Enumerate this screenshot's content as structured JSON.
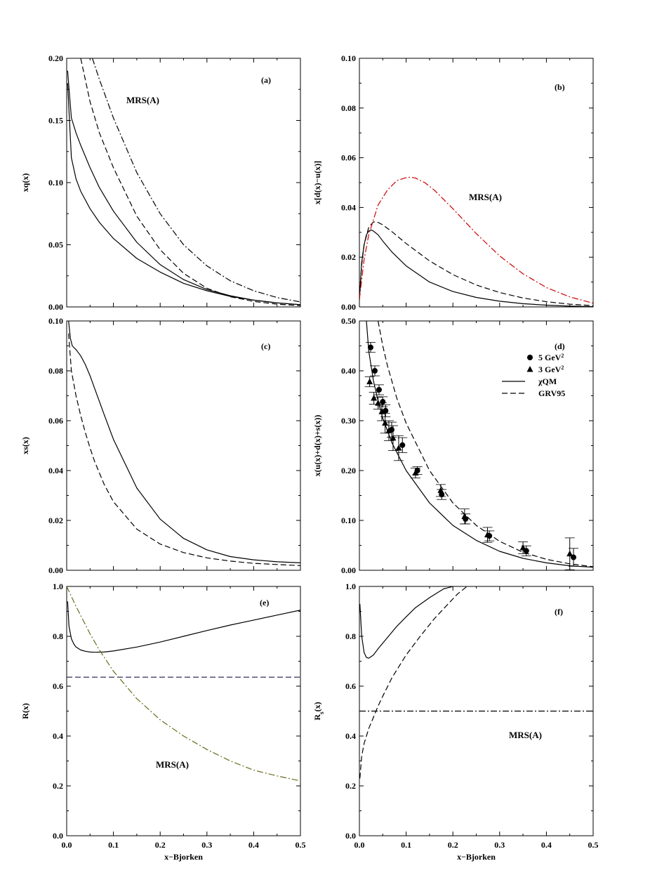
{
  "figure": {
    "xlabel": "x−Bjorken"
  },
  "chart_data": [
    {
      "id": "a",
      "type": "line",
      "panel_label": "(a)",
      "ylabel": "xq(x)",
      "annotation": "MRS(A)",
      "xlim": [
        0,
        0.5
      ],
      "ylim": [
        0,
        0.2
      ],
      "xticks": [
        "0.0",
        "0.1",
        "0.2",
        "0.3",
        "0.4",
        "0.5"
      ],
      "yticks": [
        "0.00",
        "0.05",
        "0.10",
        "0.15",
        "0.20"
      ],
      "ytick_values": [
        0,
        0.05,
        0.1,
        0.15,
        0.2
      ],
      "series": [
        {
          "style": "solid",
          "color": "#000000",
          "x": [
            0.002,
            0.01,
            0.02,
            0.03,
            0.05,
            0.07,
            0.1,
            0.15,
            0.2,
            0.25,
            0.3,
            0.35,
            0.4,
            0.45,
            0.5
          ],
          "y": [
            0.18,
            0.12,
            0.103,
            0.093,
            0.079,
            0.068,
            0.055,
            0.039,
            0.028,
            0.019,
            0.013,
            0.0085,
            0.0055,
            0.0033,
            0.0018
          ]
        },
        {
          "style": "solid",
          "color": "#000000",
          "x": [
            0.002,
            0.01,
            0.02,
            0.03,
            0.05,
            0.07,
            0.1,
            0.15,
            0.2,
            0.25,
            0.3,
            0.35,
            0.4,
            0.45,
            0.5
          ],
          "y": [
            0.19,
            0.152,
            0.14,
            0.13,
            0.112,
            0.096,
            0.077,
            0.052,
            0.034,
            0.022,
            0.014,
            0.009,
            0.0055,
            0.0032,
            0.0018
          ]
        },
        {
          "style": "dashed",
          "color": "#000000",
          "x": [
            0.03,
            0.05,
            0.07,
            0.1,
            0.15,
            0.2,
            0.25,
            0.3,
            0.35,
            0.4,
            0.45,
            0.5
          ],
          "y": [
            0.2,
            0.165,
            0.14,
            0.112,
            0.073,
            0.046,
            0.027,
            0.015,
            0.0082,
            0.0044,
            0.0022,
            0.001
          ]
        },
        {
          "style": "dashdot",
          "color": "#000000",
          "x": [
            0.055,
            0.07,
            0.1,
            0.15,
            0.2,
            0.25,
            0.3,
            0.35,
            0.4,
            0.45,
            0.5
          ],
          "y": [
            0.2,
            0.183,
            0.152,
            0.108,
            0.075,
            0.05,
            0.033,
            0.021,
            0.013,
            0.0075,
            0.004
          ]
        }
      ]
    },
    {
      "id": "b",
      "type": "line",
      "panel_label": "(b)",
      "ylabel": "x[d(x)−u(x)]",
      "annotation": "MRS(A)",
      "xlim": [
        0,
        0.5
      ],
      "ylim": [
        0,
        0.1
      ],
      "xticks": [
        "0.0",
        "0.1",
        "0.2",
        "0.3",
        "0.4",
        "0.5"
      ],
      "yticks": [
        "0.00",
        "0.02",
        "0.04",
        "0.06",
        "0.08",
        "0.10"
      ],
      "ytick_values": [
        0,
        0.02,
        0.04,
        0.06,
        0.08,
        0.1
      ],
      "series": [
        {
          "style": "solid",
          "color": "#000000",
          "x": [
            0,
            0.005,
            0.01,
            0.015,
            0.02,
            0.025,
            0.03,
            0.04,
            0.05,
            0.07,
            0.1,
            0.15,
            0.2,
            0.25,
            0.3,
            0.35,
            0.4,
            0.45,
            0.5
          ],
          "y": [
            0.003,
            0.018,
            0.025,
            0.029,
            0.0305,
            0.031,
            0.0305,
            0.029,
            0.0265,
            0.022,
            0.0165,
            0.01,
            0.0062,
            0.0038,
            0.0023,
            0.0013,
            0.0007,
            0.0003,
            0.0001
          ]
        },
        {
          "style": "dashed",
          "color": "#000000",
          "x": [
            0,
            0.005,
            0.01,
            0.02,
            0.03,
            0.04,
            0.05,
            0.07,
            0.1,
            0.15,
            0.2,
            0.25,
            0.3,
            0.35,
            0.4,
            0.45,
            0.5
          ],
          "y": [
            0.003,
            0.017,
            0.025,
            0.032,
            0.0342,
            0.034,
            0.033,
            0.0302,
            0.0255,
            0.0185,
            0.013,
            0.0088,
            0.0058,
            0.0036,
            0.0021,
            0.0011,
            0.0005
          ]
        },
        {
          "style": "dashdot",
          "color": "#cc0000",
          "x": [
            0,
            0.01,
            0.02,
            0.04,
            0.06,
            0.08,
            0.1,
            0.11,
            0.12,
            0.14,
            0.16,
            0.2,
            0.25,
            0.3,
            0.35,
            0.4,
            0.45,
            0.5
          ],
          "y": [
            0.003,
            0.019,
            0.029,
            0.041,
            0.047,
            0.0508,
            0.052,
            0.0522,
            0.0518,
            0.05,
            0.047,
            0.0395,
            0.0295,
            0.0205,
            0.0133,
            0.0078,
            0.004,
            0.0015
          ]
        }
      ]
    },
    {
      "id": "c",
      "type": "line",
      "panel_label": "(c)",
      "ylabel": "xs(x)",
      "xlim": [
        0,
        0.5
      ],
      "ylim": [
        0,
        0.1
      ],
      "xticks": [
        "0.0",
        "0.1",
        "0.2",
        "0.3",
        "0.4",
        "0.5"
      ],
      "yticks": [
        "0.00",
        "0.02",
        "0.04",
        "0.06",
        "0.08",
        "0.10"
      ],
      "ytick_values": [
        0,
        0.02,
        0.04,
        0.06,
        0.08,
        0.1
      ],
      "series": [
        {
          "style": "solid",
          "color": "#000000",
          "x": [
            0.004,
            0.008,
            0.012,
            0.02,
            0.03,
            0.04,
            0.05,
            0.06,
            0.08,
            0.1,
            0.15,
            0.2,
            0.25,
            0.3,
            0.35,
            0.4,
            0.45,
            0.5
          ],
          "y": [
            0.1,
            0.093,
            0.09,
            0.0885,
            0.086,
            0.0825,
            0.078,
            0.0728,
            0.0625,
            0.0525,
            0.033,
            0.0205,
            0.0128,
            0.0082,
            0.0055,
            0.0042,
            0.0034,
            0.003
          ]
        },
        {
          "style": "dashed",
          "color": "#000000",
          "x": [
            0.004,
            0.01,
            0.02,
            0.03,
            0.04,
            0.05,
            0.06,
            0.08,
            0.1,
            0.15,
            0.2,
            0.25,
            0.3,
            0.35,
            0.4,
            0.45,
            0.5
          ],
          "y": [
            0.095,
            0.08,
            0.07,
            0.062,
            0.0552,
            0.049,
            0.0435,
            0.0345,
            0.0275,
            0.0165,
            0.0105,
            0.0071,
            0.005,
            0.0037,
            0.0028,
            0.0023,
            0.0019
          ]
        }
      ]
    },
    {
      "id": "d",
      "type": "line",
      "panel_label": "(d)",
      "ylabel": "x(u(x)+d(x)+s(x))",
      "xlim": [
        0,
        0.5
      ],
      "ylim": [
        0,
        0.5
      ],
      "xticks": [
        "0.0",
        "0.1",
        "0.2",
        "0.3",
        "0.4",
        "0.5"
      ],
      "yticks": [
        "0.00",
        "0.10",
        "0.20",
        "0.30",
        "0.40",
        "0.50"
      ],
      "ytick_values": [
        0,
        0.1,
        0.2,
        0.3,
        0.4,
        0.5
      ],
      "legend": {
        "position": "top-right",
        "items": [
          {
            "marker": "circle",
            "text": "5 GeV",
            "sup": "2"
          },
          {
            "marker": "triangle",
            "text": "3 GeV",
            "sup": "2"
          },
          {
            "marker": "solid-line",
            "text": "χQM"
          },
          {
            "marker": "dashed-line",
            "text": "GRV95"
          }
        ]
      },
      "series": [
        {
          "style": "solid",
          "color": "#000000",
          "x": [
            0.015,
            0.02,
            0.03,
            0.04,
            0.05,
            0.07,
            0.1,
            0.15,
            0.2,
            0.25,
            0.3,
            0.35,
            0.4,
            0.45,
            0.5
          ],
          "y": [
            0.5,
            0.44,
            0.38,
            0.34,
            0.305,
            0.255,
            0.2,
            0.135,
            0.09,
            0.06,
            0.038,
            0.024,
            0.015,
            0.009,
            0.006
          ]
        },
        {
          "style": "dashed",
          "color": "#000000",
          "x": [
            0.04,
            0.05,
            0.06,
            0.08,
            0.1,
            0.15,
            0.2,
            0.25,
            0.3,
            0.35,
            0.4,
            0.45,
            0.5
          ],
          "y": [
            0.5,
            0.45,
            0.41,
            0.345,
            0.295,
            0.2,
            0.135,
            0.09,
            0.058,
            0.036,
            0.022,
            0.013,
            0.007
          ]
        }
      ],
      "points": [
        {
          "marker": "circle",
          "x": [
            0.024,
            0.033,
            0.042,
            0.05,
            0.056,
            0.069,
            0.092,
            0.124,
            0.176,
            0.227,
            0.278,
            0.357,
            0.458
          ],
          "y": [
            0.447,
            0.4,
            0.362,
            0.338,
            0.32,
            0.282,
            0.251,
            0.2,
            0.152,
            0.103,
            0.069,
            0.039,
            0.026
          ],
          "err": [
            0.01,
            0.01,
            0.01,
            0.01,
            0.012,
            0.015,
            0.015,
            0.008,
            0.01,
            0.01,
            0.01,
            0.01,
            0.018
          ]
        },
        {
          "marker": "triangle",
          "x": [
            0.022,
            0.031,
            0.04,
            0.048,
            0.055,
            0.063,
            0.072,
            0.084,
            0.12,
            0.174,
            0.225,
            0.274,
            0.35,
            0.45
          ],
          "y": [
            0.378,
            0.345,
            0.335,
            0.318,
            0.295,
            0.28,
            0.265,
            0.245,
            0.195,
            0.16,
            0.108,
            0.071,
            0.045,
            0.033
          ],
          "err": [
            0.01,
            0.012,
            0.012,
            0.018,
            0.02,
            0.02,
            0.025,
            0.025,
            0.01,
            0.012,
            0.015,
            0.015,
            0.012,
            0.032
          ]
        }
      ]
    },
    {
      "id": "e",
      "type": "line",
      "panel_label": "(e)",
      "ylabel": "R(x)",
      "annotation": "MRS(A)",
      "xlabel": "x−Bjorken",
      "xlim": [
        0,
        0.5
      ],
      "ylim": [
        0,
        1
      ],
      "xticks": [
        "0.0",
        "0.1",
        "0.2",
        "0.3",
        "0.4",
        "0.5"
      ],
      "yticks": [
        "0.0",
        "0.2",
        "0.4",
        "0.6",
        "0.8",
        "1.0"
      ],
      "ytick_values": [
        0,
        0.2,
        0.4,
        0.6,
        0.8,
        1.0
      ],
      "series": [
        {
          "style": "solid",
          "color": "#000000",
          "x": [
            0.002,
            0.005,
            0.01,
            0.015,
            0.02,
            0.03,
            0.04,
            0.05,
            0.06,
            0.08,
            0.1,
            0.15,
            0.2,
            0.25,
            0.3,
            0.35,
            0.4,
            0.45,
            0.5
          ],
          "y": [
            0.94,
            0.84,
            0.79,
            0.77,
            0.757,
            0.745,
            0.74,
            0.737,
            0.736,
            0.737,
            0.741,
            0.757,
            0.777,
            0.8,
            0.823,
            0.845,
            0.865,
            0.885,
            0.905
          ]
        },
        {
          "style": "dashed",
          "color": "#1a1a4a",
          "x": [
            0,
            0.5
          ],
          "y": [
            0.636,
            0.636
          ]
        },
        {
          "style": "dashdot",
          "color": "#6b6b1f",
          "x": [
            0,
            0.02,
            0.05,
            0.07,
            0.1,
            0.15,
            0.2,
            0.25,
            0.3,
            0.35,
            0.4,
            0.45,
            0.5
          ],
          "y": [
            1.0,
            0.92,
            0.81,
            0.745,
            0.66,
            0.55,
            0.465,
            0.4,
            0.346,
            0.3,
            0.263,
            0.24,
            0.22
          ]
        }
      ]
    },
    {
      "id": "f",
      "type": "line",
      "panel_label": "(f)",
      "ylabel": "R",
      "ylabel_sub": "s",
      "ylabel_suffix": "(x)",
      "annotation": "MRS(A)",
      "xlabel": "x−Bjorken",
      "xlim": [
        0,
        0.5
      ],
      "ylim": [
        0,
        1
      ],
      "xticks": [
        "0.0",
        "0.1",
        "0.2",
        "0.3",
        "0.4",
        "0.5"
      ],
      "yticks": [
        "0.0",
        "0.2",
        "0.4",
        "0.6",
        "0.8",
        "1.0"
      ],
      "ytick_values": [
        0,
        0.2,
        0.4,
        0.6,
        0.8,
        1.0
      ],
      "series": [
        {
          "style": "solid",
          "color": "#000000",
          "x": [
            0.001,
            0.005,
            0.01,
            0.015,
            0.02,
            0.03,
            0.04,
            0.06,
            0.08,
            0.1,
            0.12,
            0.15,
            0.18,
            0.2
          ],
          "y": [
            0.93,
            0.8,
            0.735,
            0.715,
            0.712,
            0.725,
            0.75,
            0.795,
            0.84,
            0.878,
            0.915,
            0.955,
            0.99,
            1.0
          ]
        },
        {
          "style": "dashed",
          "color": "#000000",
          "x": [
            0.001,
            0.005,
            0.01,
            0.02,
            0.03,
            0.04,
            0.05,
            0.07,
            0.1,
            0.13,
            0.16,
            0.19,
            0.21,
            0.23
          ],
          "y": [
            0.23,
            0.32,
            0.37,
            0.43,
            0.475,
            0.52,
            0.56,
            0.635,
            0.725,
            0.8,
            0.87,
            0.93,
            0.97,
            1.0
          ]
        },
        {
          "style": "dashdot",
          "color": "#000000",
          "x": [
            0,
            0.5
          ],
          "y": [
            0.5,
            0.5
          ]
        }
      ]
    }
  ]
}
